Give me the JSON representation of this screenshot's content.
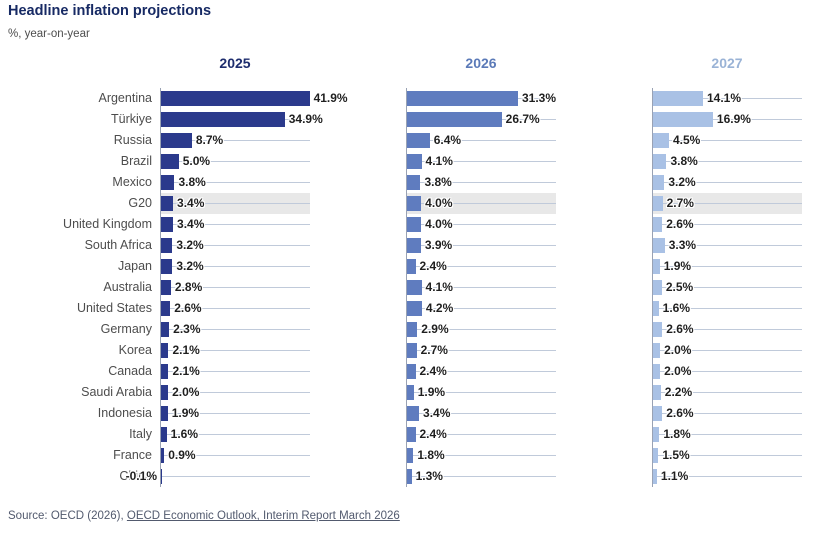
{
  "title": "Headline inflation projections",
  "subtitle": "%, year-on-year",
  "source": {
    "prefix": "Source: OECD (2026), ",
    "link_text": "OECD Economic Outlook, Interim Report March 2026"
  },
  "colors": {
    "title": "#172a64",
    "axis": "#99a2b4",
    "gridline": "#c0cada",
    "highlight_band": "#e8e8e8",
    "value_label": "#1f1f1f",
    "country_label": "#4d4d4d"
  },
  "chart_data": {
    "type": "bar",
    "orientation": "horizontal",
    "value_suffix": "%",
    "grid": true,
    "xlim": [
      0,
      42.3
    ],
    "highlighted_category": "G20",
    "categories": [
      "Argentina",
      "Türkiye",
      "Russia",
      "Brazil",
      "Mexico",
      "G20",
      "United Kingdom",
      "South Africa",
      "Japan",
      "Australia",
      "United States",
      "Germany",
      "Korea",
      "Canada",
      "Saudi Arabia",
      "Indonesia",
      "Italy",
      "France",
      "China"
    ],
    "series": [
      {
        "name": "2025",
        "header_color": "#1e2d6e",
        "bar_color": "#2b3a8c",
        "values": [
          41.9,
          34.9,
          8.7,
          5.0,
          3.8,
          3.4,
          3.4,
          3.2,
          3.2,
          2.8,
          2.6,
          2.3,
          2.1,
          2.1,
          2.0,
          1.9,
          1.6,
          0.9,
          -0.1
        ]
      },
      {
        "name": "2026",
        "header_color": "#5b7ab8",
        "bar_color": "#5f7cbf",
        "values": [
          31.3,
          26.7,
          6.4,
          4.1,
          3.8,
          4.0,
          4.0,
          3.9,
          2.4,
          4.1,
          4.2,
          2.9,
          2.7,
          2.4,
          1.9,
          3.4,
          2.4,
          1.8,
          1.3
        ]
      },
      {
        "name": "2027",
        "header_color": "#9ab3d6",
        "bar_color": "#a9c1e5",
        "values": [
          14.1,
          16.9,
          4.5,
          3.8,
          3.2,
          2.7,
          2.6,
          3.3,
          1.9,
          2.5,
          1.6,
          2.6,
          2.0,
          2.0,
          2.2,
          2.6,
          1.8,
          1.5,
          1.1
        ]
      }
    ]
  }
}
